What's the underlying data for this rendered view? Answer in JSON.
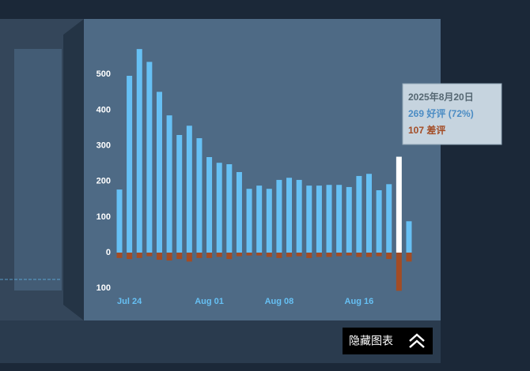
{
  "chart_data": {
    "type": "bar",
    "categories": [
      null,
      "Jul 24",
      null,
      null,
      null,
      null,
      null,
      null,
      null,
      "Aug 01",
      null,
      null,
      null,
      null,
      null,
      null,
      "Aug 08",
      null,
      null,
      null,
      null,
      null,
      null,
      null,
      "Aug 16",
      null,
      null,
      null,
      null,
      null
    ],
    "series": [
      {
        "name": "好评",
        "color": "#66c0f4",
        "values": [
          177,
          496,
          571,
          535,
          451,
          385,
          330,
          356,
          321,
          268,
          252,
          248,
          226,
          179,
          188,
          179,
          204,
          210,
          204,
          188,
          188,
          190,
          190,
          184,
          215,
          221,
          175,
          192,
          269,
          88
        ],
        "bar_colors": [
          "#66c0f4",
          "#66c0f4",
          "#66c0f4",
          "#66c0f4",
          "#66c0f4",
          "#66c0f4",
          "#66c0f4",
          "#66c0f4",
          "#66c0f4",
          "#66c0f4",
          "#66c0f4",
          "#66c0f4",
          "#66c0f4",
          "#66c0f4",
          "#66c0f4",
          "#66c0f4",
          "#66c0f4",
          "#66c0f4",
          "#66c0f4",
          "#66c0f4",
          "#66c0f4",
          "#66c0f4",
          "#66c0f4",
          "#66c0f4",
          "#66c0f4",
          "#66c0f4",
          "#66c0f4",
          "#66c0f4",
          "#ffffff",
          "#66c0f4"
        ]
      },
      {
        "name": "差评",
        "color": "#a34c25",
        "values": [
          -15,
          -18,
          -15,
          -10,
          -20,
          -22,
          -18,
          -25,
          -15,
          -15,
          -12,
          -18,
          -10,
          -8,
          -8,
          -12,
          -15,
          -12,
          -10,
          -15,
          -12,
          -12,
          -10,
          -8,
          -12,
          -12,
          -10,
          -18,
          -107,
          -25
        ]
      }
    ],
    "ylim": [
      -115,
      620
    ],
    "yticks": [
      {
        "value": -100,
        "label": "100"
      },
      0,
      100,
      200,
      300,
      400,
      500
    ],
    "tooltip": {
      "date": "2025年8月20日",
      "positive": "269 好评 (72%)",
      "negative": "107 差评"
    }
  },
  "button": {
    "label": "隐藏图表"
  }
}
